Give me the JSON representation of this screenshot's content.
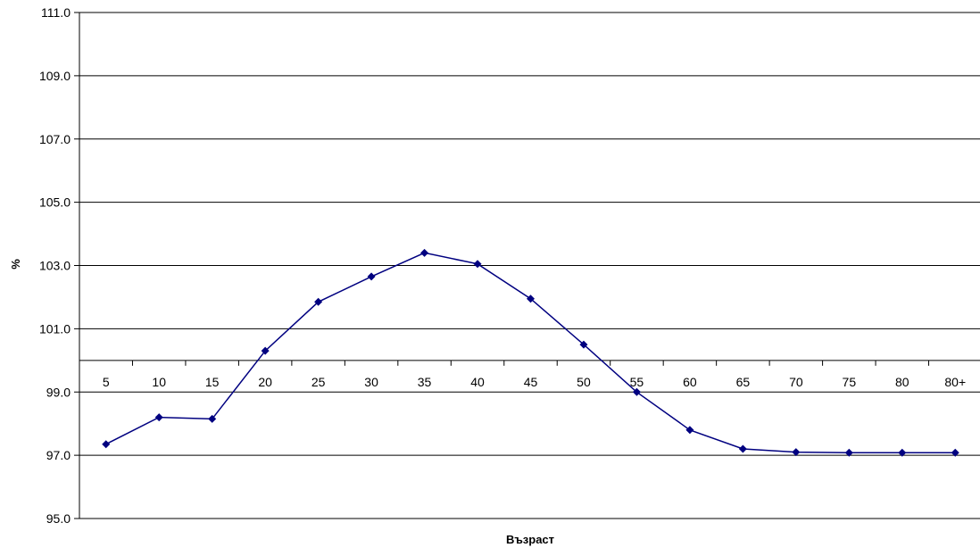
{
  "chart_data": {
    "type": "line",
    "title": "",
    "xlabel": "Възраст",
    "ylabel": "%",
    "categories": [
      "5",
      "10",
      "15",
      "20",
      "25",
      "30",
      "35",
      "40",
      "45",
      "50",
      "55",
      "60",
      "65",
      "70",
      "75",
      "80",
      "80+"
    ],
    "series": [
      {
        "values": [
          97.35,
          98.2,
          98.15,
          100.3,
          101.85,
          102.65,
          103.4,
          103.05,
          101.95,
          100.5,
          99.0,
          97.8,
          97.2,
          97.1,
          97.08,
          97.08,
          97.08
        ]
      }
    ],
    "ylim": [
      95.0,
      111.0
    ],
    "yticks": [
      "95.0",
      "97.0",
      "99.0",
      "101.0",
      "103.0",
      "105.0",
      "107.0",
      "109.0",
      "111.0"
    ],
    "x_axis_crosses_at": 100.0,
    "grid": true,
    "legend": "none",
    "colors": {
      "series": "#000080",
      "grid": "#000000"
    }
  }
}
